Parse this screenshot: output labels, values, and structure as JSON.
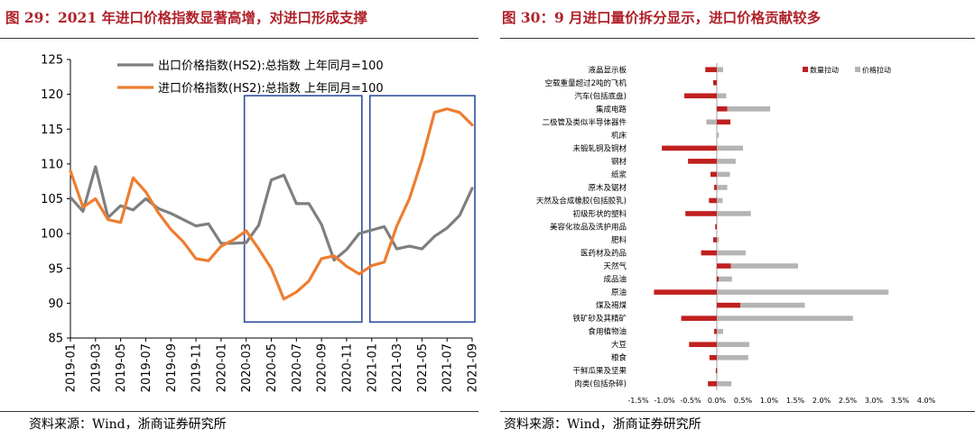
{
  "left": {
    "title": "图 29：2021 年进口价格指数显著高增，对进口形成支撑",
    "source": "资料来源：Wind，浙商证券研究所",
    "colors": {
      "export": "#7f7f7f",
      "import": "#ed7d31",
      "box": "#2f4f9f"
    },
    "chart_data": {
      "type": "line",
      "title": "图 29：2021 年进口价格指数显著高增，对进口形成支撑",
      "ylim": [
        85,
        125
      ],
      "yticks": [
        85,
        90,
        95,
        100,
        105,
        110,
        115,
        120,
        125
      ],
      "x_labels": [
        "2019-01",
        "2019-03",
        "2019-05",
        "2019-07",
        "2019-09",
        "2019-11",
        "2020-01",
        "2020-03",
        "2020-05",
        "2020-07",
        "2020-09",
        "2020-11",
        "2021-01",
        "2021-03",
        "2021-05",
        "2021-07",
        "2021-09"
      ],
      "x": [
        "2019-01",
        "2019-02",
        "2019-03",
        "2019-04",
        "2019-05",
        "2019-06",
        "2019-07",
        "2019-08",
        "2019-09",
        "2019-10",
        "2019-11",
        "2019-12",
        "2020-01",
        "2020-02",
        "2020-03",
        "2020-04",
        "2020-05",
        "2020-06",
        "2020-07",
        "2020-08",
        "2020-09",
        "2020-10",
        "2020-11",
        "2020-12",
        "2021-01",
        "2021-02",
        "2021-03",
        "2021-04",
        "2021-05",
        "2021-06",
        "2021-07",
        "2021-08",
        "2021-09"
      ],
      "series": [
        {
          "name": "出口价格指数(HS2):总指数  上年同月=100",
          "color": "#7f7f7f",
          "values": [
            105.2,
            103.2,
            109.6,
            102.3,
            104.0,
            103.4,
            105.0,
            103.6,
            102.9,
            102.0,
            101.1,
            101.4,
            98.6,
            98.6,
            98.7,
            101.2,
            107.7,
            108.4,
            104.3,
            104.3,
            101.3,
            96.2,
            97.7,
            100.0,
            100.5,
            101.0,
            97.8,
            98.2,
            97.8,
            99.6,
            100.8,
            102.6,
            106.5
          ]
        },
        {
          "name": "进口价格指数(HS2):总指数  上年同月=100",
          "color": "#ed7d31",
          "values": [
            109.0,
            103.8,
            105.0,
            102.0,
            101.6,
            108.0,
            106.0,
            103.0,
            100.6,
            98.8,
            96.4,
            96.1,
            98.2,
            99.1,
            100.4,
            97.8,
            95.0,
            90.6,
            91.6,
            93.2,
            96.4,
            96.8,
            95.3,
            94.2,
            95.4,
            95.9,
            101.1,
            105.0,
            110.6,
            117.4,
            117.9,
            117.4,
            115.6
          ]
        }
      ],
      "boxes": [
        {
          "from": "2020-03",
          "to": "2020-12"
        },
        {
          "from": "2021-01",
          "to": "2021-09"
        }
      ]
    }
  },
  "right": {
    "title": "图 30：9 月进口量价拆分显示，进口价格贡献较多",
    "source": "资料来源：Wind，浙商证券研究所",
    "colors": {
      "quantity": "#c0201e",
      "price": "#b4b4b4"
    },
    "chart_data": {
      "type": "bar",
      "orientation": "horizontal",
      "title": "图 30：9 月进口量价拆分显示，进口价格贡献较多",
      "xlim": [
        -1.5,
        4.0
      ],
      "xticks": [
        "-1.5%",
        "-1.0%",
        "-0.5%",
        "0.0%",
        "0.5%",
        "1.0%",
        "1.5%",
        "2.0%",
        "2.5%",
        "3.0%",
        "3.5%",
        "4.0%"
      ],
      "categories": [
        "液晶显示板",
        "空载重量超过2吨的飞机",
        "汽车(包括底盘)",
        "集成电路",
        "二极管及类似半导体器件",
        "机床",
        "未锻轧铜及铜材",
        "钢材",
        "纸浆",
        "原木及锯材",
        "天然及合成橡胶(包括胶乳)",
        "初级形状的塑料",
        "美容化妆品及洗护用品",
        "肥料",
        "医药材及药品",
        "天然气",
        "成品油",
        "原油",
        "煤及褐煤",
        "铁矿砂及其精矿",
        "食用植物油",
        "大豆",
        "粮食",
        "干鲜瓜果及坚果",
        "肉类(包括杂碎)"
      ],
      "series": [
        {
          "name": "数量拉动",
          "color": "#c0201e",
          "values": [
            -0.22,
            -0.07,
            -0.62,
            0.2,
            0.26,
            0,
            -1.05,
            -0.55,
            -0.12,
            -0.05,
            -0.15,
            -0.6,
            -0.03,
            -0.07,
            -0.3,
            0.27,
            0.04,
            -1.2,
            0.45,
            -0.68,
            -0.05,
            -0.53,
            -0.14,
            -0.02,
            -0.17
          ]
        },
        {
          "name": "价格拉动",
          "color": "#b4b4b4",
          "values": [
            0.12,
            0,
            0.18,
            0.82,
            -0.2,
            0.04,
            0.5,
            0.36,
            0.25,
            0.2,
            0.11,
            0.65,
            0,
            0.04,
            0.55,
            1.28,
            0.25,
            3.28,
            1.23,
            2.6,
            0.12,
            0.62,
            0.6,
            0.02,
            0.28
          ]
        }
      ]
    }
  }
}
